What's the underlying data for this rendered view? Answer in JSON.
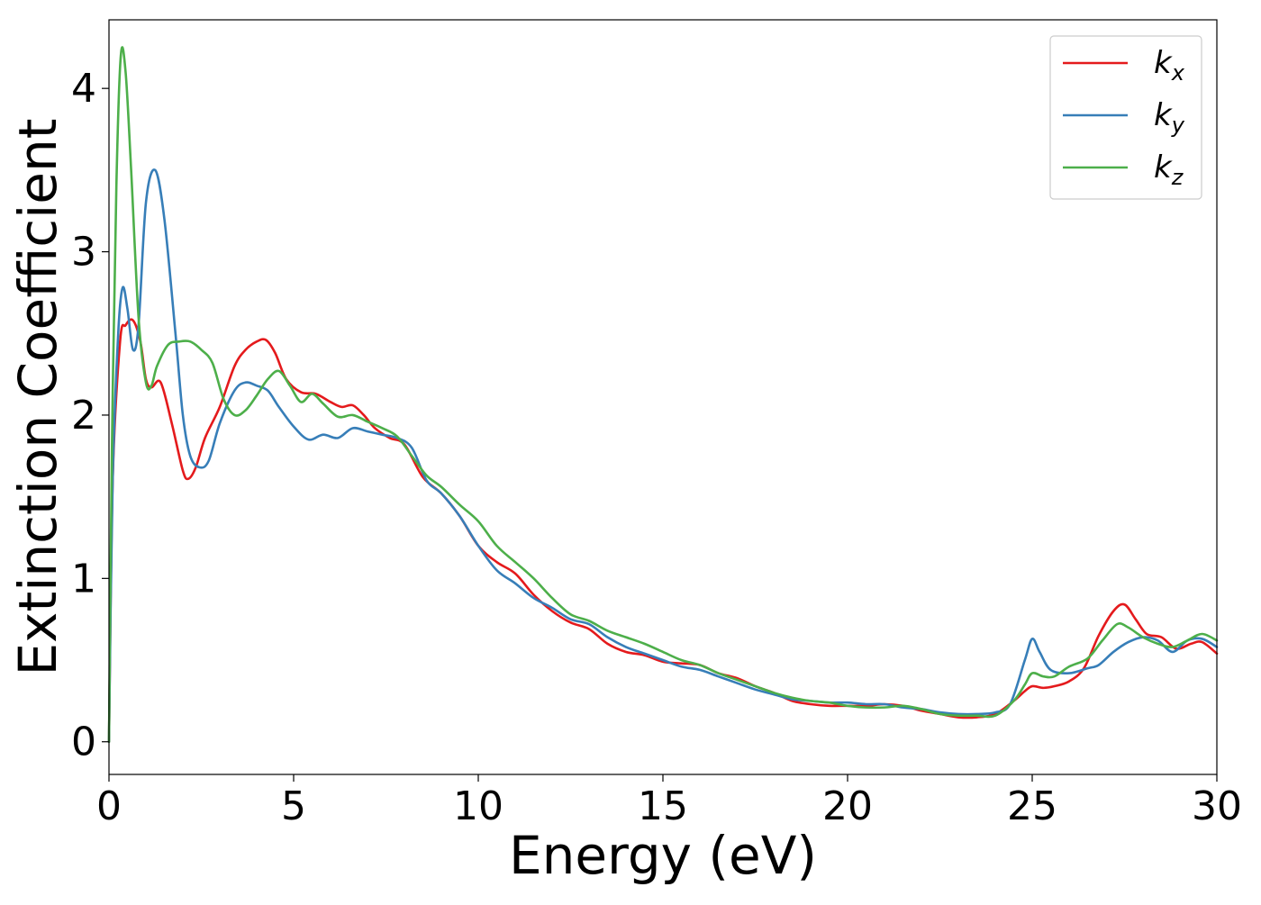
{
  "chart_data": {
    "type": "line",
    "title": "",
    "xlabel": "Energy (eV)",
    "ylabel": "Extinction Coefficient",
    "xlim": [
      0,
      30
    ],
    "ylim": [
      -0.2,
      4.42
    ],
    "x_ticks": [
      0,
      5,
      10,
      15,
      20,
      25,
      30
    ],
    "y_ticks": [
      0,
      1,
      2,
      3,
      4
    ],
    "x_tick_labels": [
      "0",
      "5",
      "10",
      "15",
      "20",
      "25",
      "30"
    ],
    "y_tick_labels": [
      "0",
      "1",
      "2",
      "3",
      "4"
    ],
    "grid": false,
    "legend_position": "top-right",
    "series": [
      {
        "name": "k_x",
        "label_main": "k",
        "label_sub": "x",
        "color": "#e41a1c",
        "x": [
          0,
          0.1,
          0.3,
          0.45,
          0.65,
          0.85,
          1.0,
          1.15,
          1.4,
          1.7,
          2.0,
          2.15,
          2.35,
          2.6,
          3.0,
          3.4,
          3.7,
          4.0,
          4.25,
          4.5,
          4.8,
          5.2,
          5.6,
          6.0,
          6.3,
          6.6,
          6.9,
          7.2,
          7.6,
          8.0,
          8.5,
          9.0,
          9.5,
          10.0,
          10.5,
          11.0,
          11.5,
          12.0,
          12.5,
          13.0,
          13.5,
          14.0,
          14.5,
          15.0,
          15.5,
          16.0,
          16.5,
          17.0,
          17.5,
          18.0,
          18.5,
          19.0,
          19.5,
          20.0,
          20.5,
          21.0,
          21.5,
          22.0,
          22.5,
          23.0,
          23.5,
          24.0,
          24.5,
          24.8,
          25.0,
          25.3,
          25.6,
          26.0,
          26.4,
          26.8,
          27.2,
          27.5,
          27.8,
          28.1,
          28.5,
          28.9,
          29.3,
          29.6,
          30.0
        ],
        "y": [
          0,
          1.6,
          2.45,
          2.55,
          2.58,
          2.45,
          2.22,
          2.17,
          2.2,
          1.95,
          1.66,
          1.61,
          1.68,
          1.86,
          2.05,
          2.3,
          2.4,
          2.45,
          2.46,
          2.38,
          2.22,
          2.14,
          2.13,
          2.08,
          2.05,
          2.06,
          2.0,
          1.92,
          1.86,
          1.82,
          1.62,
          1.52,
          1.38,
          1.2,
          1.1,
          1.03,
          0.9,
          0.8,
          0.73,
          0.69,
          0.6,
          0.55,
          0.53,
          0.49,
          0.48,
          0.47,
          0.42,
          0.39,
          0.34,
          0.3,
          0.25,
          0.23,
          0.22,
          0.22,
          0.22,
          0.23,
          0.22,
          0.19,
          0.17,
          0.15,
          0.15,
          0.17,
          0.25,
          0.31,
          0.34,
          0.33,
          0.34,
          0.37,
          0.45,
          0.65,
          0.8,
          0.84,
          0.75,
          0.66,
          0.64,
          0.57,
          0.6,
          0.61,
          0.54
        ]
      },
      {
        "name": "k_y",
        "label_main": "k",
        "label_sub": "y",
        "color": "#377eb8",
        "x": [
          0,
          0.1,
          0.25,
          0.37,
          0.5,
          0.65,
          0.8,
          1.0,
          1.25,
          1.5,
          1.8,
          2.0,
          2.2,
          2.45,
          2.7,
          3.0,
          3.4,
          3.7,
          4.0,
          4.3,
          4.6,
          5.0,
          5.4,
          5.8,
          6.2,
          6.6,
          7.0,
          7.4,
          7.8,
          8.2,
          8.6,
          9.0,
          9.5,
          10.0,
          10.5,
          11.0,
          11.5,
          12.0,
          12.5,
          13.0,
          13.5,
          14.0,
          14.5,
          15.0,
          15.5,
          16.0,
          16.5,
          17.0,
          17.5,
          18.0,
          18.5,
          19.0,
          19.5,
          20.0,
          20.5,
          21.0,
          21.5,
          22.0,
          22.5,
          23.0,
          23.5,
          24.0,
          24.4,
          24.8,
          25.0,
          25.2,
          25.5,
          26.0,
          26.5,
          26.8,
          27.2,
          27.6,
          28.0,
          28.4,
          28.8,
          29.2,
          29.6,
          30.0
        ],
        "y": [
          0,
          1.6,
          2.5,
          2.78,
          2.65,
          2.4,
          2.55,
          3.3,
          3.5,
          3.2,
          2.5,
          2.0,
          1.75,
          1.68,
          1.72,
          1.95,
          2.15,
          2.2,
          2.18,
          2.15,
          2.05,
          1.93,
          1.85,
          1.88,
          1.86,
          1.92,
          1.9,
          1.88,
          1.86,
          1.8,
          1.6,
          1.52,
          1.38,
          1.2,
          1.05,
          0.97,
          0.88,
          0.82,
          0.75,
          0.72,
          0.64,
          0.58,
          0.54,
          0.5,
          0.46,
          0.44,
          0.4,
          0.36,
          0.32,
          0.29,
          0.26,
          0.25,
          0.24,
          0.24,
          0.23,
          0.23,
          0.21,
          0.2,
          0.18,
          0.17,
          0.17,
          0.18,
          0.23,
          0.5,
          0.63,
          0.55,
          0.44,
          0.42,
          0.45,
          0.47,
          0.55,
          0.61,
          0.64,
          0.62,
          0.55,
          0.62,
          0.63,
          0.58
        ]
      },
      {
        "name": "k_z",
        "label_main": "k",
        "label_sub": "z",
        "color": "#4daf4a",
        "x": [
          0,
          0.08,
          0.2,
          0.32,
          0.45,
          0.6,
          0.8,
          1.0,
          1.15,
          1.3,
          1.6,
          1.9,
          2.2,
          2.5,
          2.8,
          3.1,
          3.4,
          3.7,
          4.0,
          4.3,
          4.6,
          4.9,
          5.2,
          5.5,
          5.8,
          6.2,
          6.6,
          7.0,
          7.4,
          7.8,
          8.2,
          8.6,
          9.0,
          9.5,
          10.0,
          10.5,
          11.0,
          11.5,
          12.0,
          12.5,
          13.0,
          13.5,
          14.0,
          14.5,
          15.0,
          15.5,
          16.0,
          16.5,
          17.0,
          17.5,
          18.0,
          18.5,
          19.0,
          19.5,
          20.0,
          20.5,
          21.0,
          21.5,
          22.0,
          22.5,
          23.0,
          23.5,
          24.0,
          24.5,
          24.8,
          25.0,
          25.3,
          25.6,
          26.0,
          26.5,
          26.9,
          27.3,
          27.6,
          28.0,
          28.4,
          28.8,
          29.2,
          29.6,
          30.0
        ],
        "y": [
          0,
          1.8,
          3.4,
          4.2,
          4.1,
          3.5,
          2.6,
          2.2,
          2.18,
          2.3,
          2.43,
          2.45,
          2.45,
          2.4,
          2.32,
          2.1,
          2.0,
          2.03,
          2.12,
          2.22,
          2.27,
          2.18,
          2.08,
          2.13,
          2.07,
          1.99,
          2.0,
          1.96,
          1.92,
          1.87,
          1.75,
          1.63,
          1.56,
          1.45,
          1.35,
          1.2,
          1.1,
          1.0,
          0.88,
          0.78,
          0.74,
          0.68,
          0.64,
          0.6,
          0.55,
          0.5,
          0.47,
          0.42,
          0.38,
          0.34,
          0.3,
          0.27,
          0.25,
          0.24,
          0.22,
          0.21,
          0.21,
          0.22,
          0.2,
          0.17,
          0.16,
          0.16,
          0.16,
          0.25,
          0.35,
          0.42,
          0.4,
          0.4,
          0.46,
          0.51,
          0.62,
          0.72,
          0.7,
          0.64,
          0.6,
          0.58,
          0.62,
          0.66,
          0.62
        ]
      }
    ]
  }
}
